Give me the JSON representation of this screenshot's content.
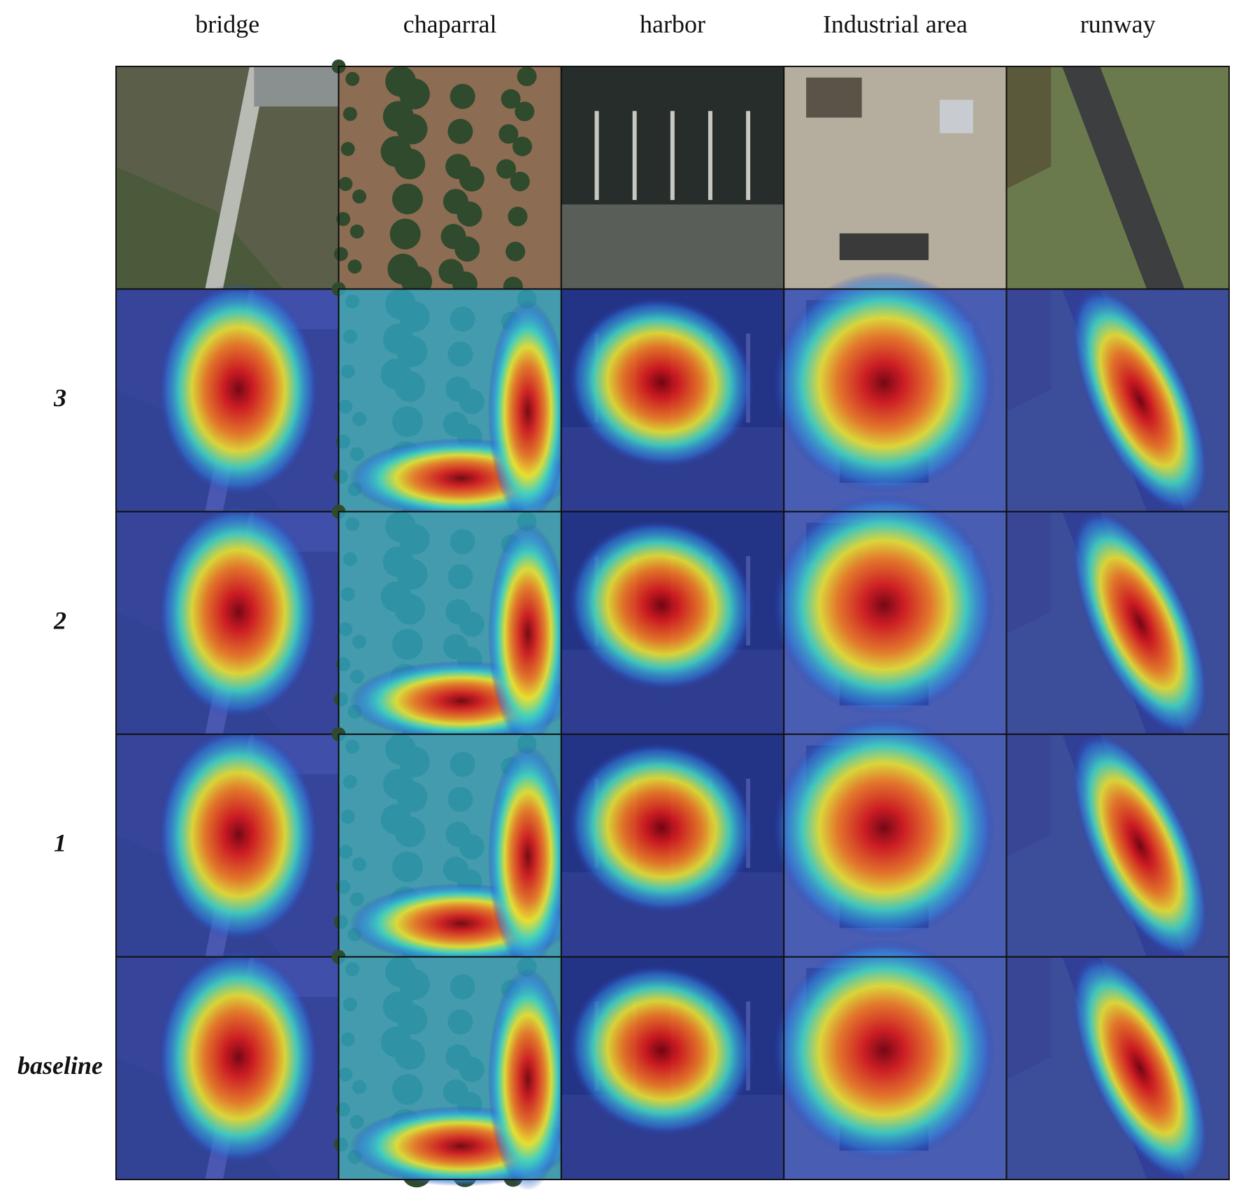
{
  "columns": [
    "bridge",
    "chaparral",
    "harbor",
    "Industrial area",
    "runway"
  ],
  "rows": [
    "3",
    "2",
    "1",
    "baseline"
  ]
}
